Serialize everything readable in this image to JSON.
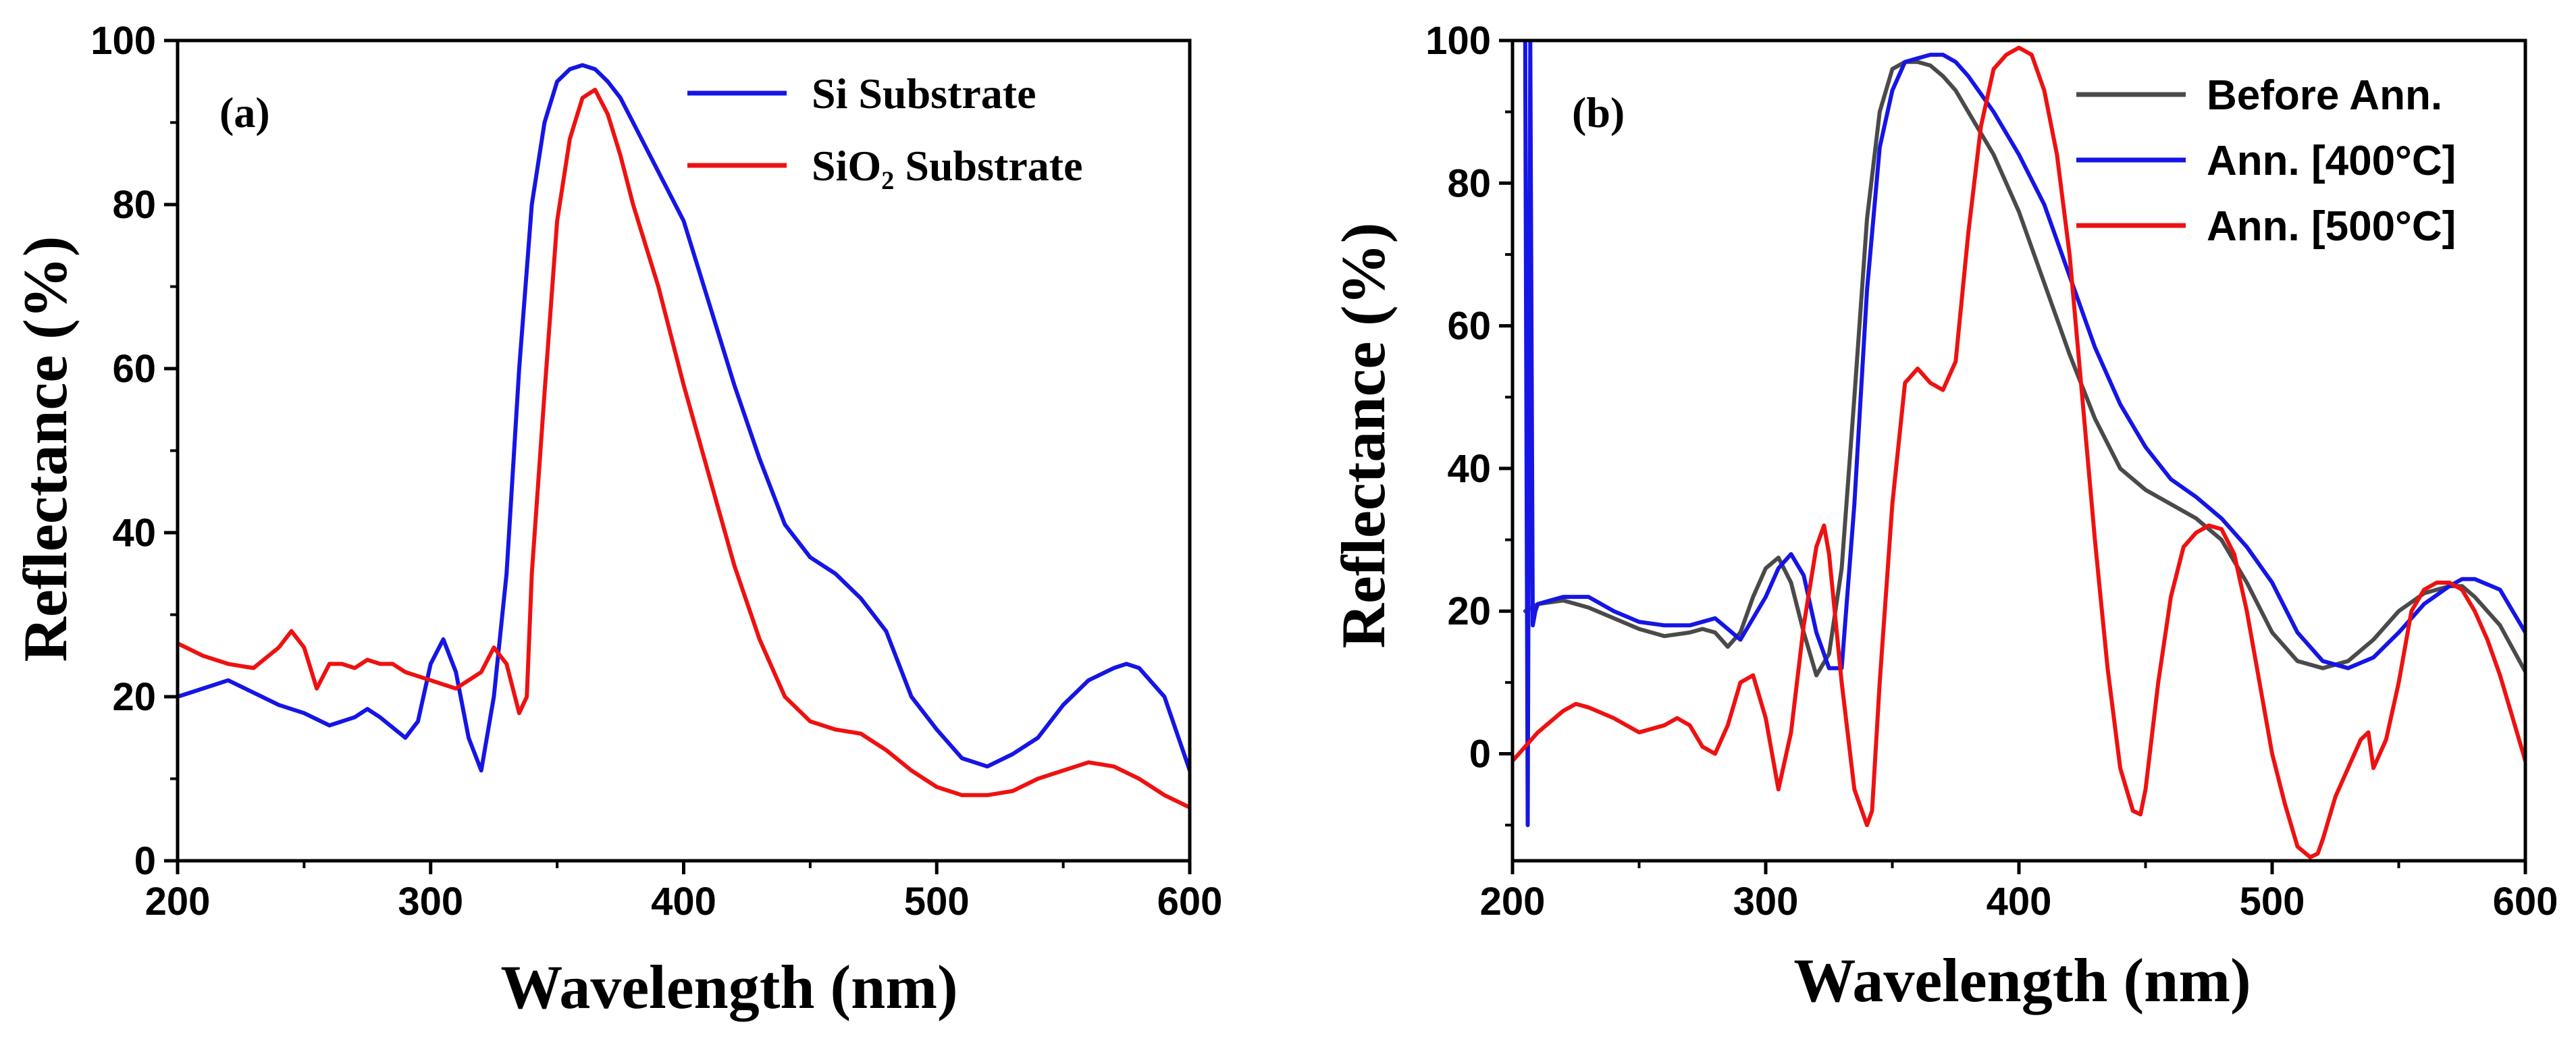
{
  "colors": {
    "blue": "#1515e6",
    "red": "#ee1111",
    "gray": "#4a4a4a",
    "axis": "#000000"
  },
  "chart_data": [
    {
      "panel": "(a)",
      "type": "line",
      "xlabel": "Wavelength (nm)",
      "ylabel": "Reflectance (%)",
      "xlim": [
        200,
        600
      ],
      "ylim": [
        0,
        100
      ],
      "xticks": [
        200,
        300,
        400,
        500,
        600
      ],
      "yticks": [
        0,
        20,
        40,
        60,
        80,
        100
      ],
      "grid": false,
      "legend_position": "top-right",
      "series": [
        {
          "name": "Si Substrate",
          "color_key": "blue",
          "x": [
            200,
            210,
            220,
            230,
            240,
            250,
            260,
            270,
            275,
            280,
            290,
            295,
            300,
            305,
            310,
            315,
            320,
            325,
            330,
            335,
            340,
            345,
            350,
            355,
            360,
            365,
            370,
            375,
            380,
            390,
            400,
            410,
            420,
            430,
            440,
            450,
            460,
            470,
            480,
            490,
            500,
            510,
            520,
            530,
            540,
            550,
            560,
            570,
            575,
            580,
            590,
            600
          ],
          "y": [
            20,
            21,
            22,
            20.5,
            19,
            18,
            16.5,
            17.5,
            18.5,
            17.5,
            15,
            17,
            24,
            27,
            23,
            15,
            11,
            20,
            35,
            60,
            80,
            90,
            95,
            96.5,
            97,
            96.5,
            95,
            93,
            90,
            84,
            78,
            68,
            58,
            49,
            41,
            37,
            35,
            32,
            28,
            20,
            16,
            12.5,
            11.5,
            13,
            15,
            19,
            22,
            23.5,
            24,
            23.5,
            20,
            11
          ]
        },
        {
          "name": "SiO₂ Substrate",
          "color_key": "red",
          "x": [
            200,
            210,
            220,
            230,
            240,
            245,
            250,
            255,
            260,
            265,
            270,
            275,
            280,
            285,
            290,
            300,
            310,
            320,
            325,
            330,
            335,
            338,
            340,
            345,
            350,
            355,
            360,
            365,
            370,
            375,
            380,
            390,
            400,
            410,
            420,
            430,
            440,
            450,
            460,
            470,
            480,
            490,
            500,
            510,
            520,
            530,
            540,
            550,
            560,
            570,
            580,
            590,
            600
          ],
          "y": [
            26.5,
            25,
            24,
            23.5,
            26,
            28,
            26,
            21,
            24,
            24,
            23.5,
            24.5,
            24,
            24,
            23,
            22,
            21,
            23,
            26,
            24,
            18,
            20,
            35,
            57,
            78,
            88,
            93,
            94,
            91,
            86,
            80,
            70,
            58,
            47,
            36,
            27,
            20,
            17,
            16,
            15.5,
            13.5,
            11,
            9,
            8,
            8,
            8.5,
            10,
            11,
            12,
            11.5,
            10,
            8,
            6.5
          ]
        }
      ]
    },
    {
      "panel": "(b)",
      "type": "line",
      "xlabel": "Wavelength (nm)",
      "ylabel": "Reflectance (%)",
      "xlim": [
        200,
        600
      ],
      "ylim": [
        -15,
        100
      ],
      "xticks": [
        200,
        300,
        400,
        500,
        600
      ],
      "yticks": [
        0,
        20,
        40,
        60,
        80,
        100
      ],
      "grid": false,
      "legend_position": "top-right",
      "series": [
        {
          "name": "Before Ann.",
          "color_key": "gray",
          "x": [
            205,
            210,
            220,
            230,
            240,
            250,
            260,
            270,
            275,
            280,
            285,
            290,
            295,
            300,
            305,
            310,
            315,
            320,
            325,
            330,
            335,
            340,
            345,
            350,
            355,
            360,
            365,
            370,
            375,
            380,
            390,
            400,
            410,
            420,
            430,
            440,
            450,
            460,
            470,
            480,
            490,
            500,
            510,
            520,
            530,
            540,
            550,
            560,
            570,
            575,
            580,
            590,
            600
          ],
          "y": [
            20,
            21,
            21.5,
            20.5,
            19,
            17.5,
            16.5,
            17,
            17.5,
            17,
            15,
            17,
            22,
            26,
            27.5,
            24,
            17,
            11,
            14,
            26,
            50,
            75,
            90,
            96,
            97,
            97,
            96.5,
            95,
            93,
            90,
            84,
            76,
            66,
            56,
            47,
            40,
            37,
            35,
            33,
            30,
            24,
            17,
            13,
            12,
            13,
            16,
            20,
            22.5,
            23.5,
            23.5,
            22,
            18,
            11.5
          ]
        },
        {
          "name": "Ann. [400°C]",
          "color_key": "blue",
          "x": [
            205,
            206,
            207,
            208,
            209,
            210,
            220,
            230,
            240,
            250,
            260,
            270,
            280,
            285,
            290,
            300,
            305,
            310,
            315,
            320,
            325,
            330,
            335,
            340,
            345,
            350,
            355,
            360,
            365,
            370,
            375,
            380,
            390,
            400,
            410,
            420,
            430,
            440,
            450,
            460,
            470,
            480,
            490,
            500,
            510,
            520,
            530,
            540,
            550,
            560,
            570,
            575,
            580,
            590,
            600
          ],
          "y": [
            100,
            -10,
            100,
            18,
            20,
            21,
            22,
            22,
            20,
            18.5,
            18,
            18,
            19,
            17.5,
            16,
            22,
            26,
            28,
            25,
            17,
            12,
            12,
            35,
            65,
            85,
            93,
            97,
            97.5,
            98,
            98,
            97,
            95,
            90,
            84,
            77,
            67,
            57,
            49,
            43,
            38.5,
            36,
            33,
            29,
            24,
            17,
            13,
            12,
            13.5,
            17,
            21,
            23.5,
            24.5,
            24.5,
            23,
            17
          ]
        },
        {
          "name": "Ann. [500°C]",
          "color_key": "red",
          "x": [
            200,
            210,
            220,
            225,
            230,
            240,
            250,
            255,
            260,
            265,
            270,
            275,
            280,
            285,
            290,
            295,
            300,
            305,
            310,
            315,
            320,
            323,
            325,
            330,
            335,
            340,
            342,
            345,
            350,
            355,
            360,
            365,
            370,
            375,
            380,
            385,
            390,
            395,
            400,
            405,
            410,
            415,
            420,
            425,
            430,
            435,
            440,
            445,
            448,
            450,
            455,
            460,
            465,
            470,
            475,
            480,
            485,
            490,
            495,
            500,
            505,
            510,
            515,
            518,
            520,
            525,
            530,
            535,
            538,
            540,
            545,
            550,
            555,
            560,
            565,
            570,
            575,
            580,
            585,
            590,
            595,
            600
          ],
          "y": [
            -1,
            3,
            6,
            7,
            6.5,
            5,
            3,
            3.5,
            4,
            5,
            4,
            1,
            0,
            4,
            10,
            11,
            5,
            -5,
            3,
            18,
            29,
            32,
            28,
            10,
            -5,
            -10,
            -8,
            10,
            35,
            52,
            54,
            52,
            51,
            55,
            73,
            88,
            96,
            98,
            99,
            98,
            93,
            84,
            70,
            50,
            30,
            12,
            -2,
            -8,
            -8.5,
            -5,
            10,
            22,
            29,
            31,
            32,
            31.5,
            28,
            20,
            10,
            0,
            -7,
            -13,
            -14.5,
            -14,
            -12,
            -6,
            -2,
            2,
            3,
            -2,
            2,
            10,
            20,
            23,
            24,
            24,
            23,
            20,
            16,
            11,
            5,
            -1
          ]
        }
      ]
    }
  ]
}
